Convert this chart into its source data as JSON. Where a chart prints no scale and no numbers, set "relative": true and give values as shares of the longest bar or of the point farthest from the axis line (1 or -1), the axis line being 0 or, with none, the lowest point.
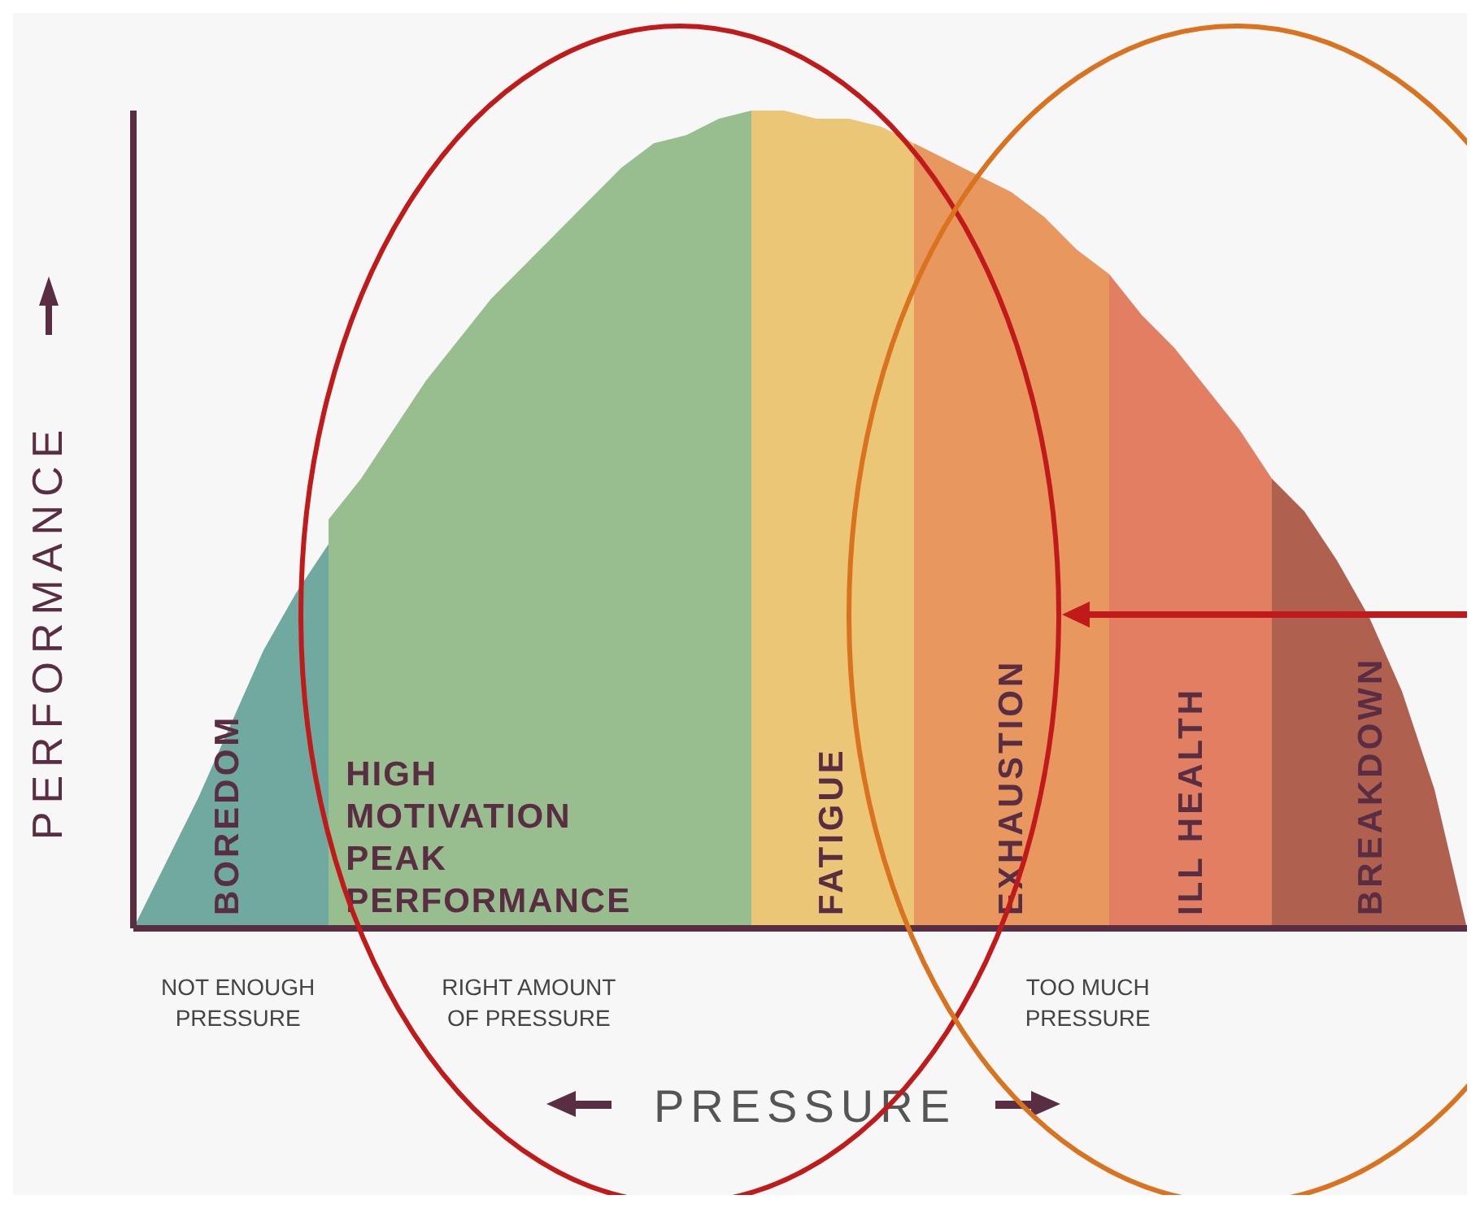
{
  "chart_data": {
    "type": "area",
    "relative": true,
    "xlabel": "PRESSURE",
    "ylabel": "PERFORMANCE",
    "categories": [
      null,
      null,
      null,
      null,
      null,
      null,
      null,
      null,
      null,
      null,
      null,
      null,
      null,
      null,
      null,
      null,
      null,
      null,
      null,
      null,
      null,
      null,
      null,
      null,
      null,
      null,
      null,
      null,
      null,
      null,
      null,
      null,
      null,
      null,
      null,
      null,
      null,
      null,
      null,
      null,
      null,
      null
    ],
    "series": [
      {
        "name": "BOREDOM",
        "color": "#6fa9a0",
        "values": [
          0,
          0.08,
          0.16,
          0.25,
          0.34,
          0.41,
          0.47,
          null,
          null,
          null,
          null,
          null,
          null,
          null,
          null,
          null,
          null,
          null,
          null,
          null,
          null,
          null,
          null,
          null,
          null,
          null,
          null,
          null,
          null,
          null,
          null,
          null,
          null,
          null,
          null,
          null,
          null,
          null,
          null,
          null,
          null,
          null
        ]
      },
      {
        "name": "HIGH MOTIVATION PEAK PERFORMANCE",
        "color": "#98bd8f",
        "values": [
          null,
          null,
          null,
          null,
          null,
          null,
          0.5,
          0.55,
          0.61,
          0.67,
          0.72,
          0.77,
          0.81,
          0.85,
          0.89,
          0.93,
          0.96,
          0.97,
          0.99,
          1,
          null,
          null,
          null,
          null,
          null,
          null,
          null,
          null,
          null,
          null,
          null,
          null,
          null,
          null,
          null,
          null,
          null,
          null,
          null,
          null,
          null,
          null
        ]
      },
      {
        "name": "FATIGUE",
        "color": "#ecc677",
        "values": [
          null,
          null,
          null,
          null,
          null,
          null,
          null,
          null,
          null,
          null,
          null,
          null,
          null,
          null,
          null,
          null,
          null,
          null,
          null,
          1,
          1,
          0.99,
          0.99,
          0.98,
          0.96,
          null,
          null,
          null,
          null,
          null,
          null,
          null,
          null,
          null,
          null,
          null,
          null,
          null,
          null,
          null,
          null,
          null
        ]
      },
      {
        "name": "EXHAUSTION",
        "color": "#e8975e",
        "values": [
          null,
          null,
          null,
          null,
          null,
          null,
          null,
          null,
          null,
          null,
          null,
          null,
          null,
          null,
          null,
          null,
          null,
          null,
          null,
          null,
          null,
          null,
          null,
          null,
          0.96,
          0.94,
          0.92,
          0.9,
          0.87,
          0.83,
          0.8,
          null,
          null,
          null,
          null,
          null,
          null,
          null,
          null,
          null,
          null,
          null
        ]
      },
      {
        "name": "ILL HEALTH",
        "color": "#e27f63",
        "values": [
          null,
          null,
          null,
          null,
          null,
          null,
          null,
          null,
          null,
          null,
          null,
          null,
          null,
          null,
          null,
          null,
          null,
          null,
          null,
          null,
          null,
          null,
          null,
          null,
          null,
          null,
          null,
          null,
          null,
          null,
          0.8,
          0.75,
          0.71,
          0.66,
          0.61,
          0.55,
          null,
          null,
          null,
          null,
          null,
          null
        ]
      },
      {
        "name": "BREAKDOWN",
        "color": "#b0604f",
        "values": [
          null,
          null,
          null,
          null,
          null,
          null,
          null,
          null,
          null,
          null,
          null,
          null,
          null,
          null,
          null,
          null,
          null,
          null,
          null,
          null,
          null,
          null,
          null,
          null,
          null,
          null,
          null,
          null,
          null,
          null,
          null,
          null,
          null,
          null,
          null,
          0.55,
          0.51,
          0.45,
          0.38,
          0.29,
          0.17,
          0
        ]
      }
    ],
    "annotations": [
      "NOT ENOUGH PRESSURE",
      "RIGHT AMOUNT OF PRESSURE",
      "TOO MUCH PRESSURE"
    ]
  }
}
